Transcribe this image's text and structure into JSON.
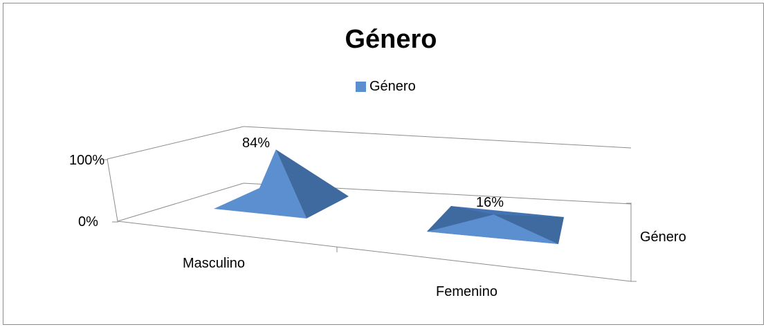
{
  "chart_data": {
    "type": "bar",
    "title": "Género",
    "categories": [
      "Masculino",
      "Femenino"
    ],
    "series": [
      {
        "name": "Género",
        "values": [
          84,
          16
        ]
      }
    ],
    "data_labels": [
      "84%",
      "16%"
    ],
    "y_ticks": [
      "0%",
      "100%"
    ],
    "ylim": [
      0,
      100
    ],
    "depth_axis_label": "Género",
    "legend_position": "top",
    "bar_shape": "pyramid",
    "grid": false,
    "colors": {
      "front": "#5b8fd0",
      "side": "#3f6aa0",
      "top_flat": "#4473b4"
    }
  }
}
